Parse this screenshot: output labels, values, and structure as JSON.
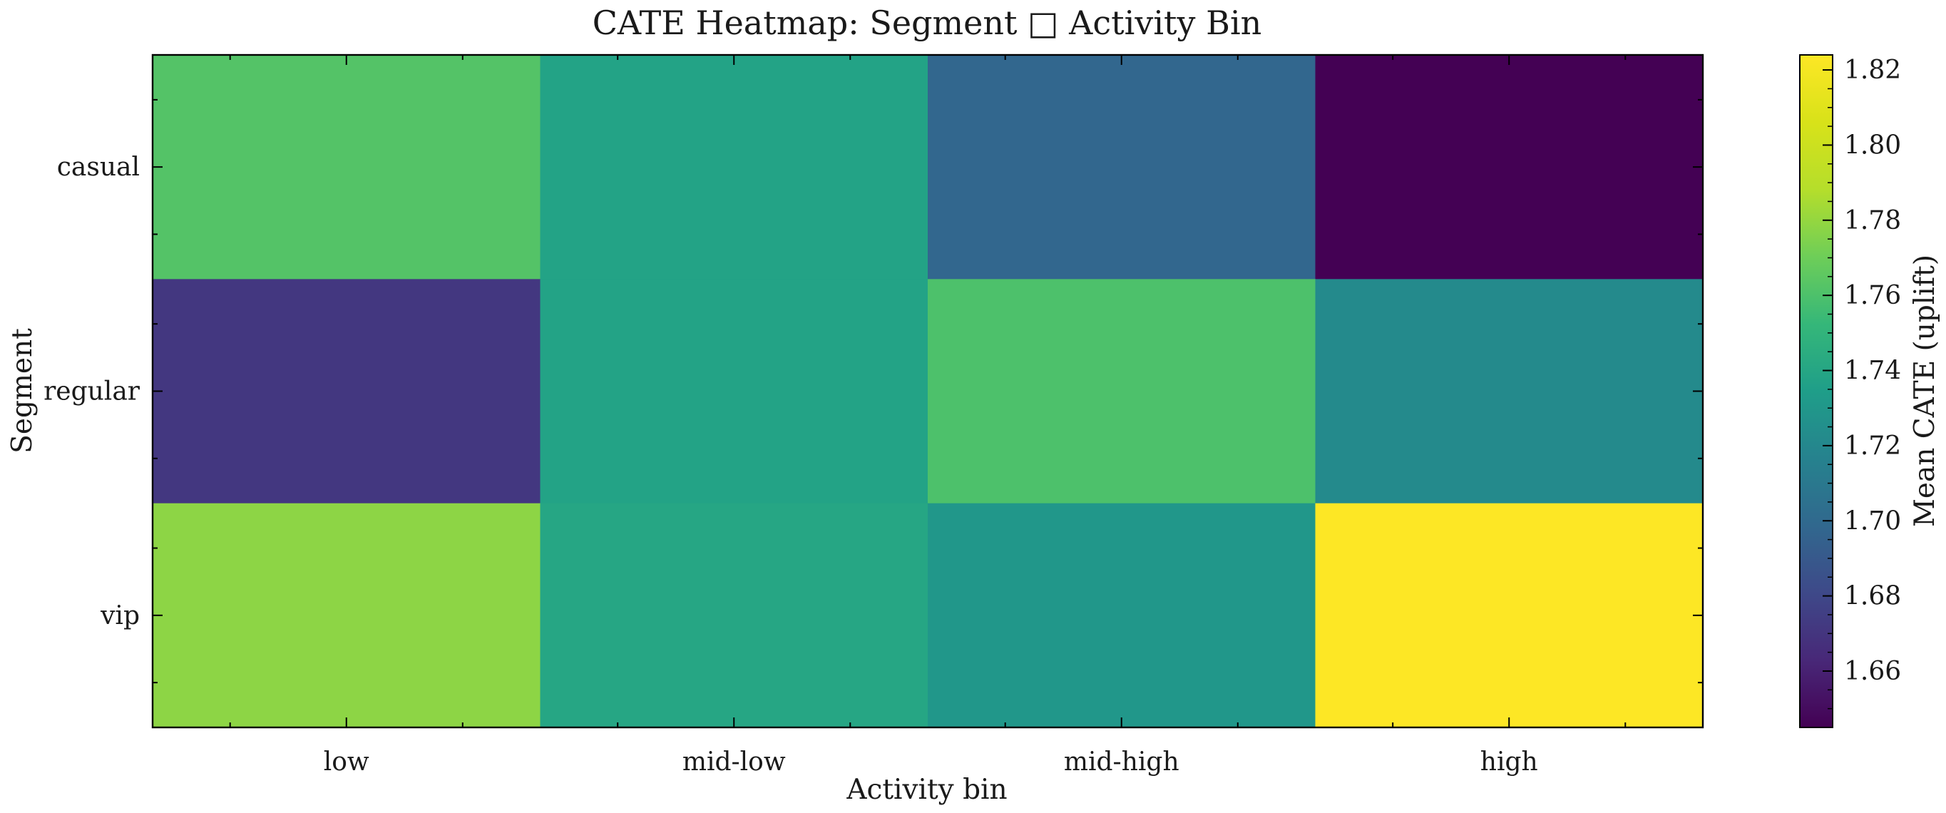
{
  "chart_data": {
    "type": "heatmap",
    "title": "CATE Heatmap: Segment □ Activity Bin",
    "xlabel": "Activity bin",
    "ylabel": "Segment",
    "x_categories": [
      "low",
      "mid-low",
      "mid-high",
      "high"
    ],
    "y_categories": [
      "casual",
      "regular",
      "vip"
    ],
    "values": [
      [
        1.762,
        1.738,
        1.698,
        1.645
      ],
      [
        1.671,
        1.738,
        1.76,
        1.722
      ],
      [
        1.778,
        1.74,
        1.73,
        1.824
      ]
    ],
    "colorbar": {
      "label": "Mean CATE (uplift)",
      "range": [
        1.645,
        1.824
      ],
      "ticks": [
        "1.66",
        "1.68",
        "1.70",
        "1.72",
        "1.74",
        "1.76",
        "1.78",
        "1.80",
        "1.82"
      ],
      "colormap": "viridis"
    },
    "grid": false
  }
}
